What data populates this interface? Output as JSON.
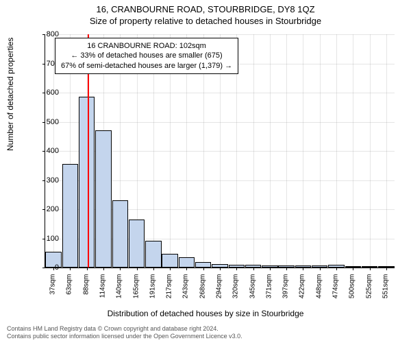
{
  "header": {
    "address": "16, CRANBOURNE ROAD, STOURBRIDGE, DY8 1QZ",
    "subtitle": "Size of property relative to detached houses in Stourbridge"
  },
  "chart": {
    "type": "histogram",
    "ylabel": "Number of detached properties",
    "xlabel": "Distribution of detached houses by size in Stourbridge",
    "ylim": [
      0,
      800
    ],
    "ytick_step": 100,
    "yticks": [
      0,
      100,
      200,
      300,
      400,
      500,
      600,
      700,
      800
    ],
    "xticks": [
      "37sqm",
      "63sqm",
      "88sqm",
      "114sqm",
      "140sqm",
      "165sqm",
      "191sqm",
      "217sqm",
      "243sqm",
      "268sqm",
      "294sqm",
      "320sqm",
      "345sqm",
      "371sqm",
      "397sqm",
      "422sqm",
      "448sqm",
      "474sqm",
      "500sqm",
      "525sqm",
      "551sqm"
    ],
    "values": [
      55,
      355,
      585,
      470,
      230,
      165,
      92,
      48,
      35,
      18,
      12,
      10,
      10,
      8,
      6,
      6,
      6,
      10,
      5,
      5,
      5
    ],
    "bar_color": "#c4d5ed",
    "bar_border": "#000000",
    "grid_color": "#7f7f7f",
    "background_color": "#ffffff",
    "bar_width": 0.96,
    "marker": {
      "position_sqm": 102,
      "bin_index_after": 2,
      "fraction_into_bin": 0.55,
      "color": "#ff0000"
    },
    "annotation": {
      "line1": "16 CRANBOURNE ROAD: 102sqm",
      "line2": "← 33% of detached houses are smaller (675)",
      "line3": "67% of semi-detached houses are larger (1,379) →"
    },
    "axis_fontsize": 11,
    "label_fontsize": 12,
    "title_fontsize": 13
  },
  "footer": {
    "line1": "Contains HM Land Registry data © Crown copyright and database right 2024.",
    "line2": "Contains public sector information licensed under the Open Government Licence v3.0."
  }
}
